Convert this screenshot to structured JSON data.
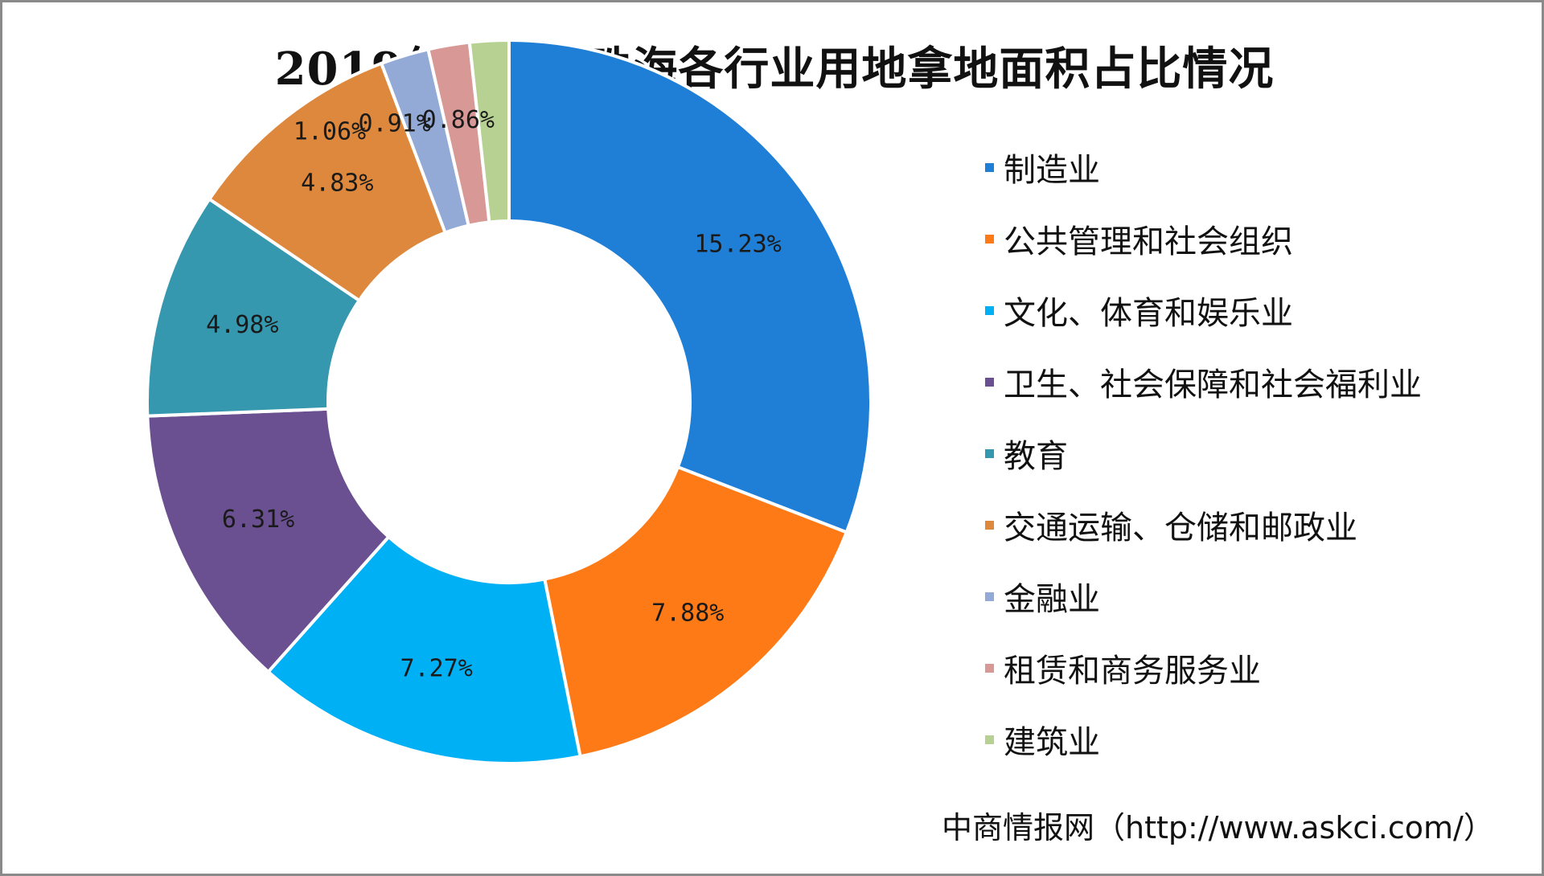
{
  "title": "2019年一季度珠海各行业用地拿地面积占比情况",
  "source": "中商情报网（http://www.askci.com/）",
  "chart_data": {
    "type": "pie",
    "subtype": "donut",
    "title": "2019年一季度珠海各行业用地拿地面积占比情况",
    "legend_position": "right",
    "slices": [
      {
        "name": "制造业",
        "value": 15.23,
        "label": "15.23%",
        "color": "#1f7fd6"
      },
      {
        "name": "公共管理和社会组织",
        "value": 7.88,
        "label": "7.88%",
        "color": "#fd7a17"
      },
      {
        "name": "文化、体育和娱乐业",
        "value": 7.27,
        "label": "7.27%",
        "color": "#00b0f5"
      },
      {
        "name": "卫生、社会保障和社会福利业",
        "value": 6.31,
        "label": "6.31%",
        "color": "#6a5090"
      },
      {
        "name": "教育",
        "value": 4.98,
        "label": "4.98%",
        "color": "#3598ae"
      },
      {
        "name": "交通运输、仓储和邮政业",
        "value": 4.83,
        "label": "4.83%",
        "color": "#dd883c"
      },
      {
        "name": "金融业",
        "value": 1.06,
        "label": "1.06%",
        "color": "#93aad6"
      },
      {
        "name": "租赁和商务服务业",
        "value": 0.91,
        "label": "0.91%",
        "color": "#d79896"
      },
      {
        "name": "建筑业",
        "value": 0.86,
        "label": "0.86%",
        "color": "#b7d193"
      }
    ]
  }
}
